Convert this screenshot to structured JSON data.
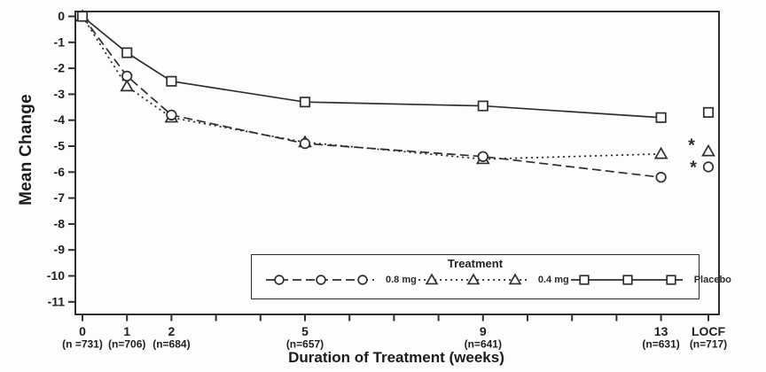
{
  "figure": {
    "background": "#fdfdfc",
    "ink_color": "#2e2e2e",
    "text_color": "#1e1e1e"
  },
  "chart_data": {
    "type": "line",
    "title": "",
    "xlabel": "Duration of Treatment (weeks)",
    "ylabel": "Mean Change",
    "ylim": [
      -11,
      0
    ],
    "grid": false,
    "y_ticks": [
      0,
      -1,
      -2,
      -3,
      -4,
      -5,
      -6,
      -7,
      -8,
      -9,
      -10,
      -11
    ],
    "x_ticks": [
      {
        "week": 0,
        "label": "0",
        "n": "(n =731)"
      },
      {
        "week": 1,
        "label": "1",
        "n": "(n=706)"
      },
      {
        "week": 2,
        "label": "2",
        "n": "(n=684)"
      },
      {
        "week": 3,
        "label": "",
        "n": ""
      },
      {
        "week": 4,
        "label": "",
        "n": ""
      },
      {
        "week": 5,
        "label": "5",
        "n": "(n=657)"
      },
      {
        "week": 6,
        "label": "",
        "n": ""
      },
      {
        "week": 7,
        "label": "",
        "n": ""
      },
      {
        "week": 8,
        "label": "",
        "n": ""
      },
      {
        "week": 9,
        "label": "9",
        "n": "(n=641)"
      },
      {
        "week": 10,
        "label": "",
        "n": ""
      },
      {
        "week": 11,
        "label": "",
        "n": ""
      },
      {
        "week": 12,
        "label": "",
        "n": ""
      },
      {
        "week": 13,
        "label": "13",
        "n": "(n=631)"
      },
      {
        "week": "LOCF",
        "label": "LOCF",
        "n": "(n=717)"
      }
    ],
    "series": [
      {
        "name": "0.8 mg",
        "marker": "circle",
        "line_style": "dashed",
        "weeks": [
          0,
          1,
          2,
          5,
          9,
          13
        ],
        "values": [
          0,
          -2.3,
          -3.8,
          -4.9,
          -5.4,
          -6.2
        ],
        "locf_value": -5.8
      },
      {
        "name": "0.4 mg",
        "marker": "triangle",
        "line_style": "dotted",
        "weeks": [
          0,
          1,
          2,
          5,
          9,
          13
        ],
        "values": [
          0,
          -2.7,
          -3.9,
          -4.85,
          -5.5,
          -5.3
        ],
        "locf_value": -5.2
      },
      {
        "name": "Placebo",
        "marker": "square",
        "line_style": "solid",
        "weeks": [
          0,
          1,
          2,
          5,
          9,
          13
        ],
        "values": [
          0,
          -1.4,
          -2.5,
          -3.3,
          -3.45,
          -3.9
        ],
        "locf_value": -3.7
      }
    ],
    "annotations": [
      {
        "symbol": "*",
        "anchor": "LOCF",
        "series": "0.4 mg",
        "value": -4.95,
        "dx": -19
      },
      {
        "symbol": "*",
        "anchor": "LOCF",
        "series": "0.8 mg",
        "value": -5.8,
        "dx": -17
      }
    ],
    "legend": {
      "title": "Treatment",
      "position": "bottom-inside"
    }
  }
}
